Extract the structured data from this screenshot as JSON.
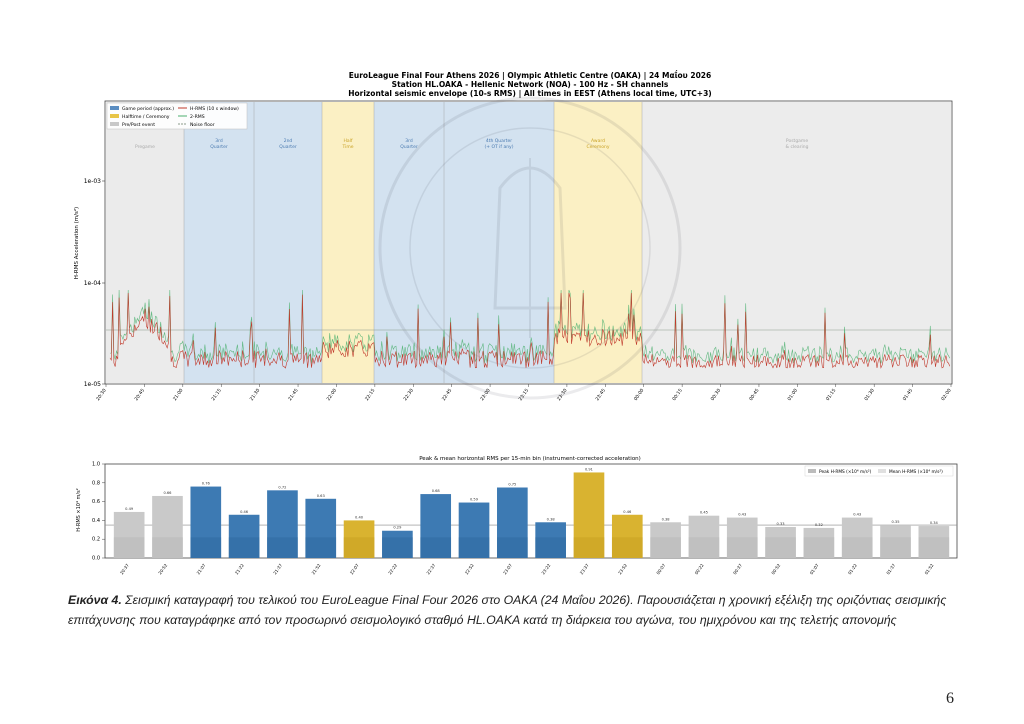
{
  "figure1": {
    "title_line1": "EuroLeague Final Four Athens 2026  |  Olympic Athletic Centre (OAKA)  |  24 Μαΐου 2026",
    "title_line2": "Station HL.OAKA - Hellenic Network (NOA) - 100 Hz - SH channels",
    "title_line3": "Horizontal seismic envelope (10-s RMS)  |  All times in EEST (Athens local time, UTC+3)",
    "ylabel": "H-RMS Acceleration (m/s²)",
    "legend": [
      "Game period (approx.)",
      "Halftime / Ceremony",
      "Pre/Post event",
      "H-RMS (10 s window)",
      "2-RMS",
      "Noise floor"
    ],
    "y_ticks": [
      "1e-03",
      "1e-04",
      "1e-05"
    ],
    "x_ticks": [
      "20:30",
      "20:45",
      "21:00",
      "21:15",
      "21:30",
      "21:45",
      "22:00",
      "22:15",
      "22:30",
      "22:45",
      "23:00",
      "23:15",
      "23:30",
      "23:45",
      "00:00",
      "00:15",
      "00:30",
      "00:45",
      "01:00",
      "01:15",
      "01:30",
      "01:45",
      "02:00"
    ],
    "colors": {
      "game": "#5b8ec2",
      "halftime": "#e8c547",
      "prepost": "#c8c8c8",
      "hrms": "#c0392b",
      "rms2": "#4cb070",
      "floor": "#8a9a8a"
    }
  },
  "chart_data": {
    "type": "bar",
    "title": "Peak & mean horizontal RMS per 15-min bin  (instrument-corrected acceleration)",
    "ylabel": "H-RMS ×10⁴ m/s²",
    "ylim": [
      0,
      1.0
    ],
    "y_ticks": [
      "1.0",
      "0.8",
      "0.6",
      "0.4",
      "0.2",
      "0.0"
    ],
    "legend": [
      "Peak H-RMS (×10⁴ m/s²)",
      "Mean H-RMS (×10⁴ m/s²)"
    ],
    "categories": [
      "20:37",
      "20:52",
      "21:07",
      "21:22",
      "21:37",
      "21:52",
      "22:07",
      "22:22",
      "22:37",
      "22:52",
      "23:07",
      "23:22",
      "23:37",
      "23:52",
      "00:07",
      "00:22",
      "00:37",
      "00:52",
      "01:07",
      "01:22",
      "01:37",
      "01:52"
    ],
    "values": [
      0.49,
      0.66,
      0.76,
      0.46,
      0.72,
      0.63,
      0.4,
      0.29,
      0.68,
      0.59,
      0.75,
      0.38,
      0.91,
      0.46,
      0.38,
      0.45,
      0.43,
      0.33,
      0.32,
      0.43,
      0.35,
      0.34
    ],
    "bar_kind": [
      "prepost",
      "prepost",
      "game",
      "game",
      "game",
      "game",
      "halftime",
      "game",
      "game",
      "game",
      "game",
      "game",
      "halftime",
      "halftime",
      "prepost",
      "prepost",
      "prepost",
      "prepost",
      "prepost",
      "prepost",
      "prepost",
      "prepost"
    ],
    "mean_line": 0.35
  },
  "caption": {
    "label": "Εικόνα 4.",
    "text": " Σεισμική καταγραφή του τελικού του EuroLeague Final Four 2026 στο ΟΑΚΑ (24 Μαΐου 2026). Παρουσιάζεται η χρονική εξέλιξη της οριζόντιας σεισμικής επιτάχυνσης που καταγράφηκε από τον προσωρινό σεισμολογικό σταθμό HL.OAKA κατά τη διάρκεια του αγώνα, του ημιχρόνου και της τελετής απονομής"
  },
  "page_number": "6"
}
